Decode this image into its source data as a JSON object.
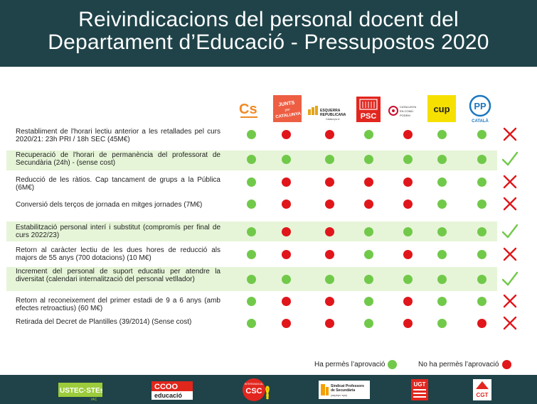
{
  "header": {
    "title_line1": "Reivindicacions del personal docent del",
    "title_line2": "Departament d’Educació - Pressupostos 2020"
  },
  "parties": [
    {
      "id": "cs",
      "label": "Cs"
    },
    {
      "id": "junts",
      "label": "JUNTS per CATALUNYA"
    },
    {
      "id": "erc",
      "label": "ESQUERRA REPUBLICANA"
    },
    {
      "id": "psc",
      "label": "PSC"
    },
    {
      "id": "comuns",
      "label": "CATALUNYA EN COMÚ PODEM"
    },
    {
      "id": "cup",
      "label": "cup"
    },
    {
      "id": "pp",
      "label": "PP CATALÀ"
    }
  ],
  "colors": {
    "header_bg": "#1f4349",
    "row_highlight": "#e6f5d8",
    "approved": "#71c94a",
    "not_approved": "#e0161b"
  },
  "rows": [
    {
      "label": "Restabliment de l'horari lectiu anterior a les retallades pel curs 2020/21: 23h PRI / 18h SEC (45M€)",
      "votes": [
        "g",
        "r",
        "r",
        "g",
        "r",
        "g",
        "g"
      ],
      "result": "rejected",
      "highlight": false
    },
    {
      "label": "Recuperació de l'horari de permanència del professorat de Secundària (24h) - (sense cost)",
      "votes": [
        "g",
        "g",
        "g",
        "g",
        "g",
        "g",
        "g"
      ],
      "result": "approved",
      "highlight": true
    },
    {
      "label": "Reducció de les ràtios. Cap tancament de grups a la Pública (6M€)",
      "votes": [
        "g",
        "r",
        "r",
        "r",
        "r",
        "g",
        "g"
      ],
      "result": "rejected",
      "highlight": false
    },
    {
      "label": "Conversió dels terços de jornada en mitges jornades (7M€)",
      "votes": [
        "g",
        "r",
        "r",
        "r",
        "r",
        "g",
        "g"
      ],
      "result": "rejected",
      "highlight": false
    },
    {
      "label": "Estabilització personal interí i substitut (compromís per final de curs 2022/23)",
      "votes": [
        "g",
        "r",
        "r",
        "g",
        "g",
        "g",
        "g"
      ],
      "result": "approved",
      "highlight": true
    },
    {
      "label": "Retorn al caràcter lectiu de les dues hores de reducció als majors de 55 anys (700 dotacions) (10 M€)",
      "votes": [
        "g",
        "r",
        "r",
        "g",
        "r",
        "g",
        "g"
      ],
      "result": "rejected",
      "highlight": false
    },
    {
      "label": "Increment del personal de suport educatiu per atendre la diversitat (calendari internalització del personal vetllador)",
      "votes": [
        "g",
        "g",
        "g",
        "g",
        "g",
        "g",
        "g"
      ],
      "result": "approved",
      "highlight": true
    },
    {
      "label": "Retorn al reconeixement del primer estadi de 9 a 6 anys (amb efectes retroactius) (60 M€)",
      "votes": [
        "g",
        "r",
        "r",
        "g",
        "r",
        "g",
        "g"
      ],
      "result": "rejected",
      "highlight": false
    },
    {
      "label": "Retirada del Decret de Plantilles (39/2014) (Sense cost)",
      "votes": [
        "g",
        "r",
        "r",
        "g",
        "r",
        "g",
        "r"
      ],
      "result": "rejected",
      "highlight": false
    }
  ],
  "legend": {
    "approved_label": "Ha permès l’aprovació",
    "rejected_label": "No ha permès l’aprovació"
  },
  "footer_logos": {
    "ustec_main": "USTEC·STEs",
    "ustec_sub": "IAC",
    "ccoo_main": "CCOO",
    "ccoo_sub": "educació",
    "csc_top": "INTERSINDICAL",
    "csc_main": "CSC",
    "aspepc_line1": "Sindicat Professors",
    "aspepc_line2": "de Secundària",
    "aspepc_line3": "(aspepc·sps)",
    "ugt": "UGT",
    "cgt": "CGT"
  }
}
